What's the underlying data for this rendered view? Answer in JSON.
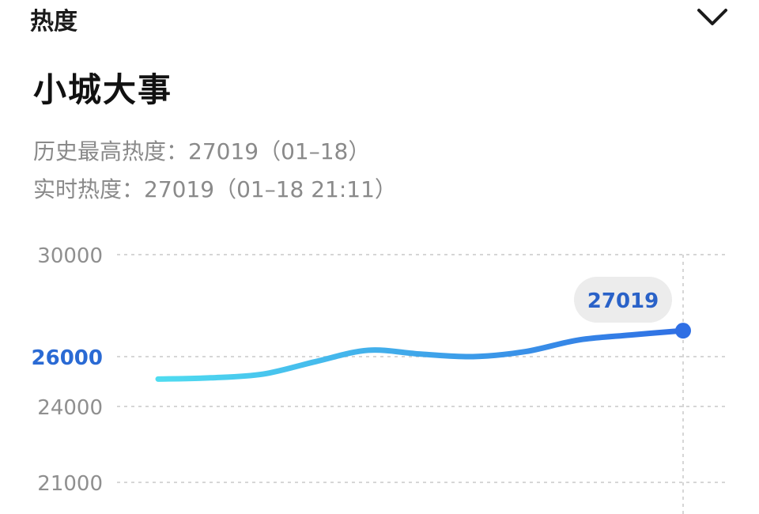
{
  "header": {
    "title": "热度"
  },
  "topic": {
    "title": "小城大事"
  },
  "stats": {
    "history_peak": "历史最高热度：27019（01–18）",
    "realtime": "实时热度：27019（01–18 21:11）"
  },
  "icons": {
    "collapse": "chevron-down-icon"
  },
  "colors": {
    "line_start": "#4fdcf0",
    "line_end": "#2f6fe4",
    "highlight_tick": "#2a6ad4"
  },
  "chart_data": {
    "type": "line",
    "yticks": [
      30000,
      26000,
      24000,
      21000
    ],
    "ytick_labels": [
      "30000",
      "26000",
      "24000",
      "21000"
    ],
    "highlighted_tick": "26000",
    "y_range": [
      21000,
      30000
    ],
    "grid": true,
    "x": [
      0,
      1,
      2,
      3,
      4,
      5,
      6,
      7,
      8,
      9,
      10
    ],
    "values": [
      25100,
      25150,
      25300,
      25800,
      26250,
      26100,
      26000,
      26200,
      26650,
      26850,
      27019
    ],
    "last_value_label": "27019"
  }
}
